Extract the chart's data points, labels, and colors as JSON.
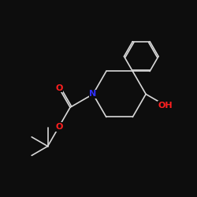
{
  "bg_color": "#0d0d0d",
  "bond_color": "#d8d8d8",
  "atom_colors": {
    "O": "#ff2020",
    "N": "#3030ff",
    "C": "#d8d8d8"
  },
  "bond_width": 1.2,
  "font_size": 8,
  "fig_size": 2.5,
  "dpi": 100
}
